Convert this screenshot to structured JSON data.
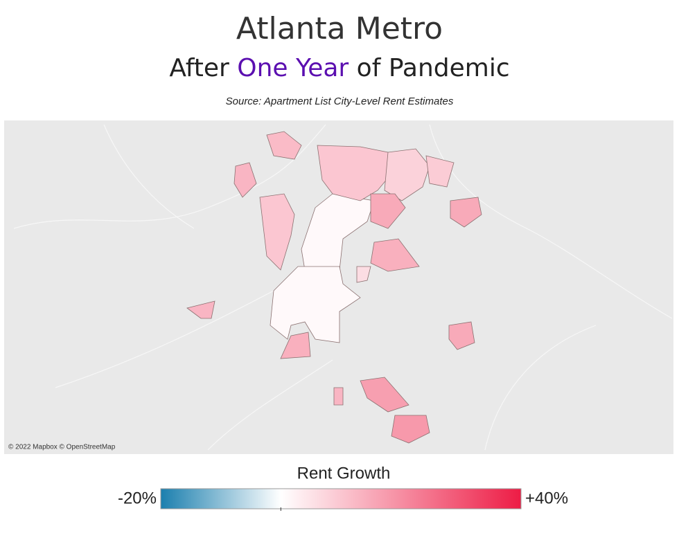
{
  "header": {
    "title": "Atlanta Metro",
    "subtitle": {
      "before": "After",
      "highlight": "One Year",
      "after": "of Pandemic"
    },
    "source": "Source: Apartment List City-Level Rent Estimates"
  },
  "map": {
    "attribution": "© 2022 Mapbox © OpenStreetMap",
    "regions": [
      {
        "value": 1
      },
      {
        "value": 1
      },
      {
        "value": 10
      },
      {
        "value": 8
      },
      {
        "value": 9
      },
      {
        "value": 15
      },
      {
        "value": 10
      },
      {
        "value": 12
      },
      {
        "value": 13
      },
      {
        "value": 14
      },
      {
        "value": 15
      },
      {
        "value": 13
      },
      {
        "value": 14
      },
      {
        "value": 15
      },
      {
        "value": 17
      },
      {
        "value": 18
      },
      {
        "value": 13
      },
      {
        "value": 6
      }
    ]
  },
  "legend": {
    "title": "Rent Growth",
    "min": {
      "value": -20,
      "label": "-20%"
    },
    "max": {
      "value": 40,
      "label": "+40%"
    },
    "low_color": "#1b7fae",
    "mid_color": "#ffffff",
    "high_color": "#ed1c45"
  }
}
